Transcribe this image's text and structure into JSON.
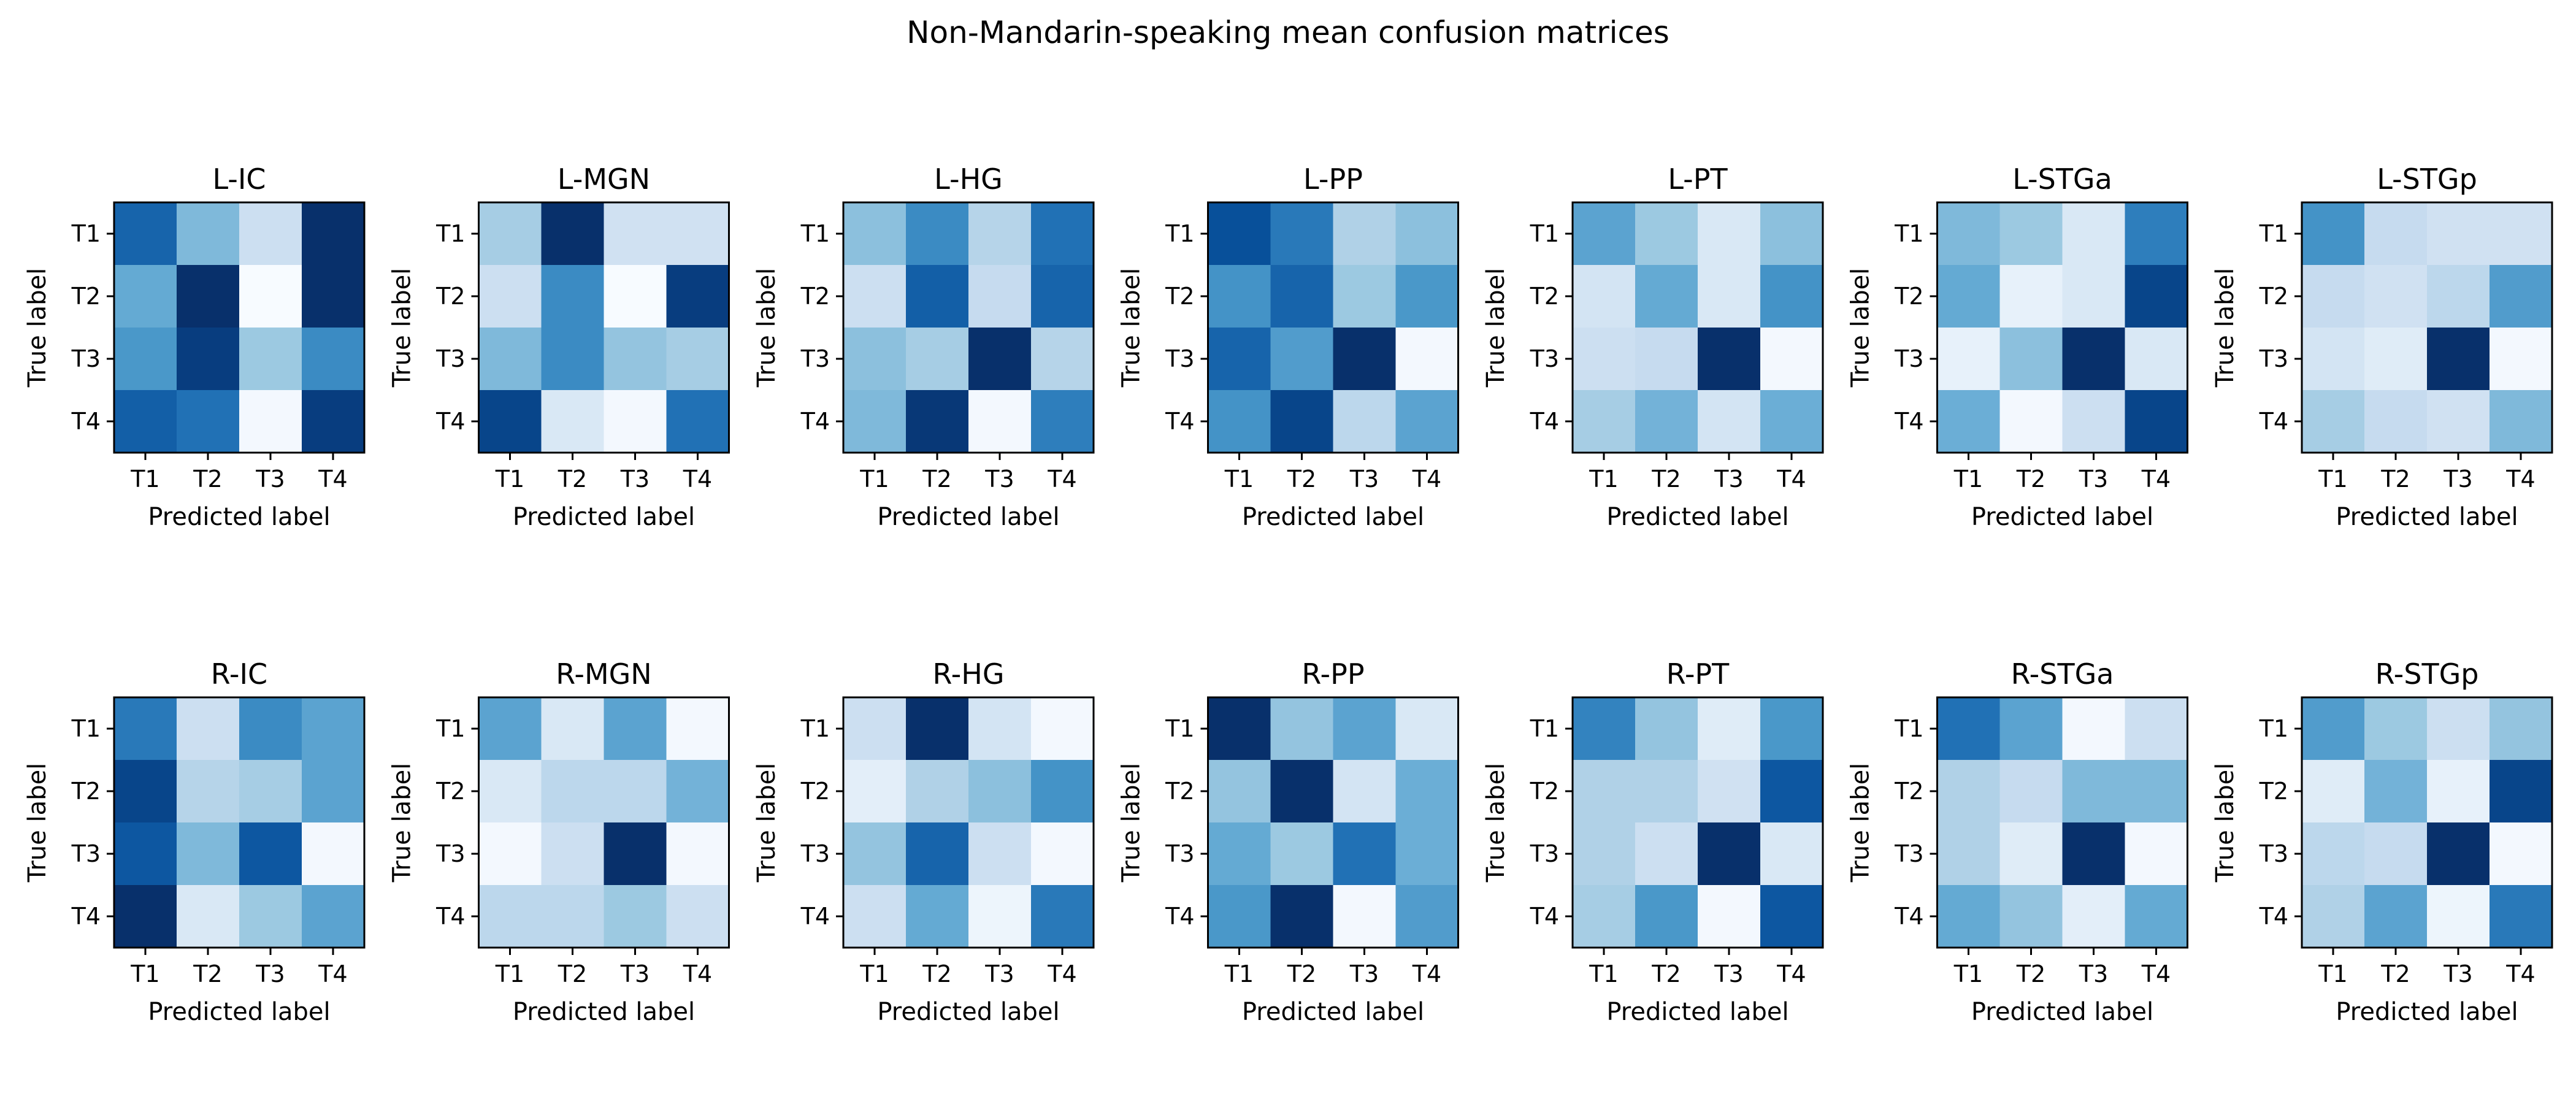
{
  "chart_data": {
    "type": "heatmap",
    "title": "Non-Mandarin-speaking mean confusion matrices",
    "colormap": "Blues",
    "xlabel": "Predicted label",
    "ylabel": "True label",
    "x_ticks": [
      "T1",
      "T2",
      "T3",
      "T4"
    ],
    "y_ticks": [
      "T1",
      "T2",
      "T3",
      "T4"
    ],
    "grid": false,
    "panels": [
      {
        "name": "L-IC",
        "values": [
          [
            0.8,
            0.45,
            0.22,
            1.0
          ],
          [
            0.52,
            1.0,
            0.0,
            1.0
          ],
          [
            0.6,
            0.95,
            0.38,
            0.65
          ],
          [
            0.82,
            0.75,
            0.02,
            0.95
          ]
        ]
      },
      {
        "name": "L-MGN",
        "values": [
          [
            0.35,
            1.0,
            0.2,
            0.2
          ],
          [
            0.22,
            0.65,
            0.0,
            0.95
          ],
          [
            0.45,
            0.65,
            0.4,
            0.35
          ],
          [
            0.92,
            0.15,
            0.02,
            0.75
          ]
        ]
      },
      {
        "name": "L-HG",
        "values": [
          [
            0.42,
            0.65,
            0.3,
            0.75
          ],
          [
            0.22,
            0.82,
            0.25,
            0.8
          ],
          [
            0.42,
            0.35,
            1.0,
            0.3
          ],
          [
            0.45,
            0.97,
            0.02,
            0.7
          ]
        ]
      },
      {
        "name": "L-PP",
        "values": [
          [
            0.88,
            0.72,
            0.32,
            0.42
          ],
          [
            0.62,
            0.8,
            0.38,
            0.6
          ],
          [
            0.8,
            0.58,
            1.0,
            0.02
          ],
          [
            0.62,
            0.92,
            0.28,
            0.55
          ]
        ]
      },
      {
        "name": "L-PT",
        "values": [
          [
            0.55,
            0.38,
            0.15,
            0.42
          ],
          [
            0.18,
            0.52,
            0.15,
            0.62
          ],
          [
            0.22,
            0.25,
            1.0,
            0.02
          ],
          [
            0.35,
            0.48,
            0.18,
            0.5
          ]
        ]
      },
      {
        "name": "L-STGa",
        "values": [
          [
            0.45,
            0.38,
            0.15,
            0.7
          ],
          [
            0.52,
            0.08,
            0.15,
            0.92
          ],
          [
            0.08,
            0.42,
            1.0,
            0.15
          ],
          [
            0.5,
            0.02,
            0.22,
            0.92
          ]
        ]
      },
      {
        "name": "L-STGp",
        "values": [
          [
            0.62,
            0.25,
            0.2,
            0.2
          ],
          [
            0.25,
            0.2,
            0.28,
            0.58
          ],
          [
            0.18,
            0.12,
            1.0,
            0.02
          ],
          [
            0.35,
            0.25,
            0.2,
            0.45
          ]
        ]
      },
      {
        "name": "R-IC",
        "values": [
          [
            0.72,
            0.22,
            0.65,
            0.55
          ],
          [
            0.92,
            0.3,
            0.35,
            0.55
          ],
          [
            0.85,
            0.45,
            0.85,
            0.02
          ],
          [
            1.0,
            0.15,
            0.38,
            0.55
          ]
        ]
      },
      {
        "name": "R-MGN",
        "values": [
          [
            0.55,
            0.15,
            0.55,
            0.02
          ],
          [
            0.15,
            0.28,
            0.28,
            0.48
          ],
          [
            0.02,
            0.22,
            1.0,
            0.02
          ],
          [
            0.28,
            0.28,
            0.38,
            0.22
          ]
        ]
      },
      {
        "name": "R-HG",
        "values": [
          [
            0.22,
            1.0,
            0.18,
            0.02
          ],
          [
            0.1,
            0.32,
            0.42,
            0.62
          ],
          [
            0.4,
            0.8,
            0.22,
            0.02
          ],
          [
            0.22,
            0.52,
            0.05,
            0.72
          ]
        ]
      },
      {
        "name": "R-PP",
        "values": [
          [
            1.0,
            0.4,
            0.55,
            0.15
          ],
          [
            0.4,
            1.0,
            0.18,
            0.5
          ],
          [
            0.52,
            0.38,
            0.75,
            0.5
          ],
          [
            0.6,
            1.0,
            0.02,
            0.58
          ]
        ]
      },
      {
        "name": "R-PT",
        "values": [
          [
            0.68,
            0.4,
            0.12,
            0.6
          ],
          [
            0.32,
            0.32,
            0.2,
            0.85
          ],
          [
            0.32,
            0.22,
            1.0,
            0.15
          ],
          [
            0.35,
            0.6,
            0.02,
            0.85
          ]
        ]
      },
      {
        "name": "R-STGa",
        "values": [
          [
            0.75,
            0.55,
            0.02,
            0.22
          ],
          [
            0.32,
            0.25,
            0.45,
            0.45
          ],
          [
            0.32,
            0.12,
            1.0,
            0.02
          ],
          [
            0.52,
            0.4,
            0.1,
            0.52
          ]
        ]
      },
      {
        "name": "R-STGp",
        "values": [
          [
            0.58,
            0.38,
            0.22,
            0.4
          ],
          [
            0.12,
            0.48,
            0.08,
            0.92
          ],
          [
            0.28,
            0.25,
            1.0,
            0.02
          ],
          [
            0.32,
            0.55,
            0.05,
            0.72
          ]
        ]
      }
    ]
  }
}
